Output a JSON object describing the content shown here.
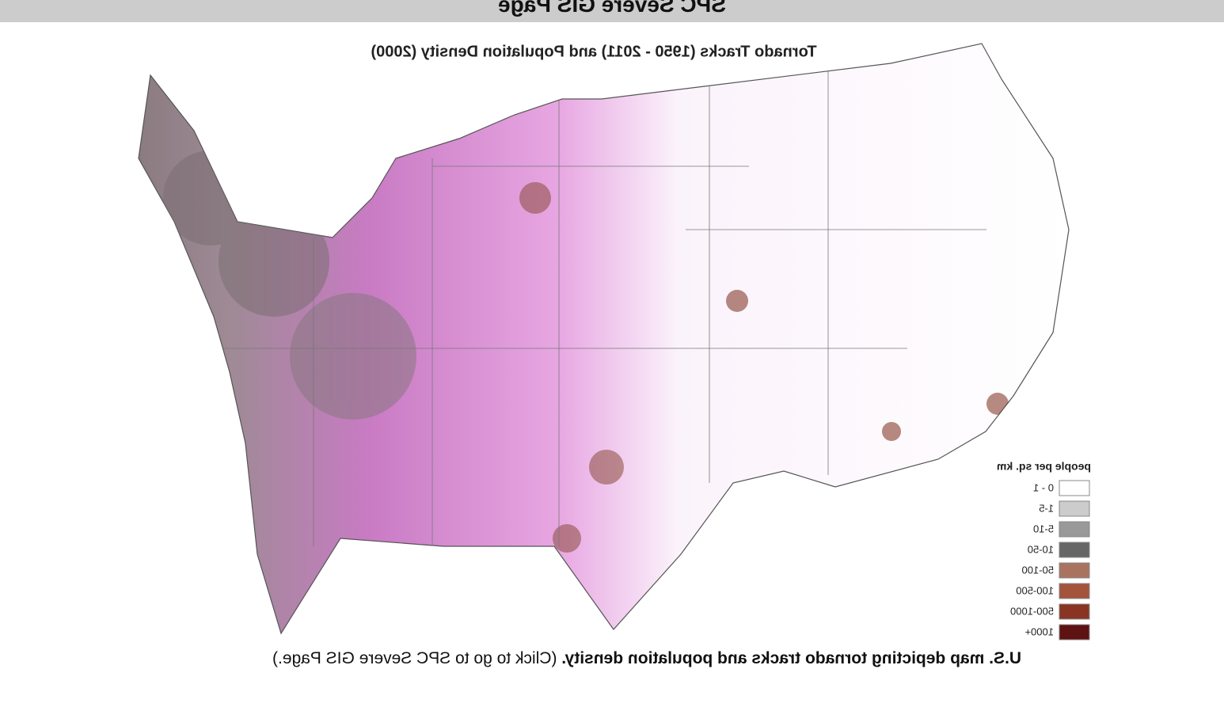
{
  "header": {
    "title": "SPC Severe GIS Page"
  },
  "map": {
    "title": "Tornado Tracks (1950 - 2011) and Population Density (2000)",
    "legend": {
      "title": "people per sq. km",
      "items": [
        {
          "label": "0 - 1",
          "color": "#ffffff"
        },
        {
          "label": "1-5",
          "color": "#cccccc"
        },
        {
          "label": "5-10",
          "color": "#999999"
        },
        {
          "label": "10-50",
          "color": "#666666"
        },
        {
          "label": "50-100",
          "color": "#a87460"
        },
        {
          "label": "100-500",
          "color": "#a3543a"
        },
        {
          "label": "500-1000",
          "color": "#8a3424"
        },
        {
          "label": "1000+",
          "color": "#5e1212"
        }
      ]
    }
  },
  "caption": {
    "bold": "U.S. map depicting tornado tracks and population density.",
    "link": "(Click to go to SPC Severe GIS Page.)"
  }
}
